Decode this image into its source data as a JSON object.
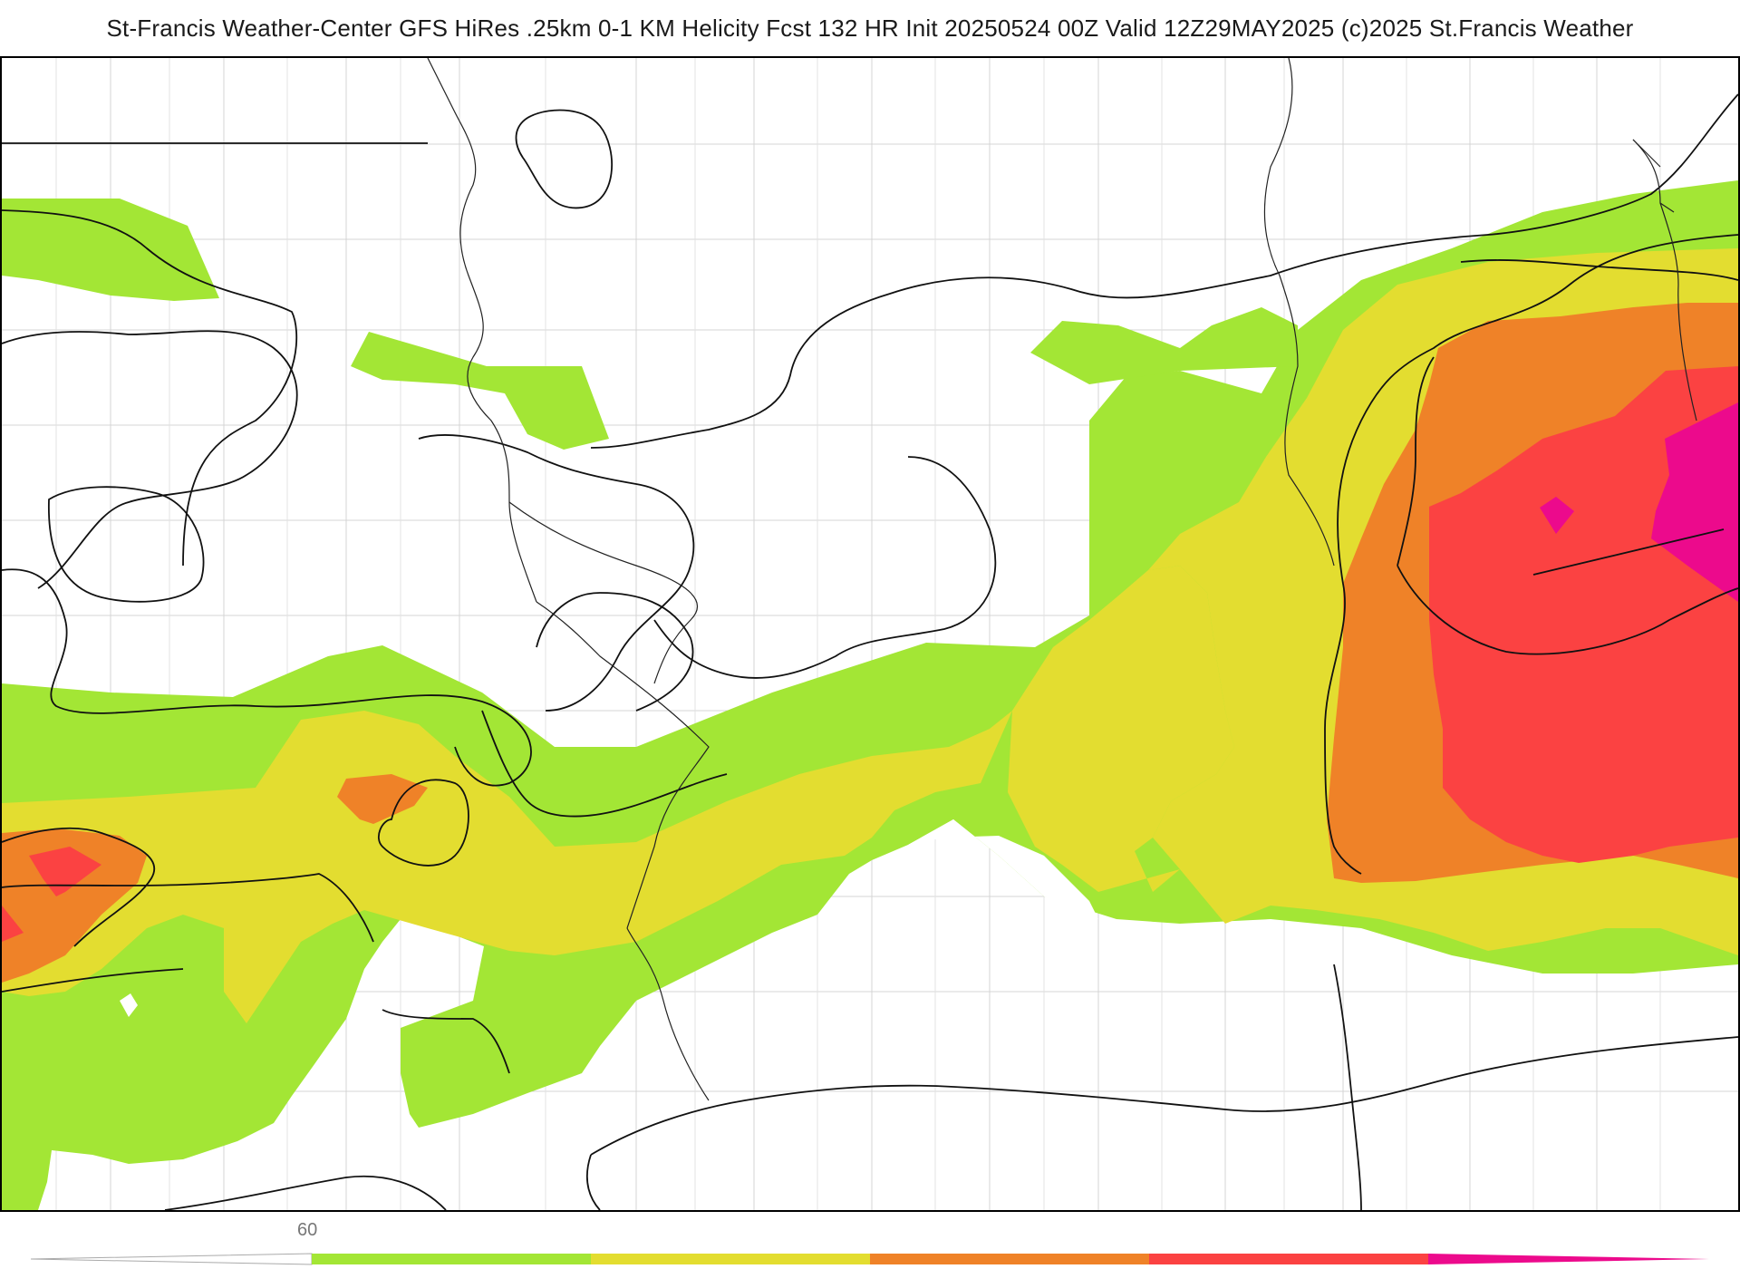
{
  "header": {
    "title": "St-Francis Weather-Center GFS HiRes .25km 0-1 KM Helicity Fcst 132 HR Init 20250524 00Z  Valid 12Z29MAY2025    (c)2025 St.Francis Weather"
  },
  "map": {
    "product": "0-1 KM Helicity",
    "fill_colors": {
      "level1": "#a3e635",
      "level2": "#e3dd30",
      "level3": "#ef8228",
      "level4": "#fb4242",
      "level5": "#ec0a8c"
    }
  },
  "legend": {
    "first_label": "60",
    "colors": [
      "#ffffff",
      "#a3e635",
      "#e3dd30",
      "#ef8228",
      "#fb4242",
      "#ec0a8c"
    ]
  }
}
